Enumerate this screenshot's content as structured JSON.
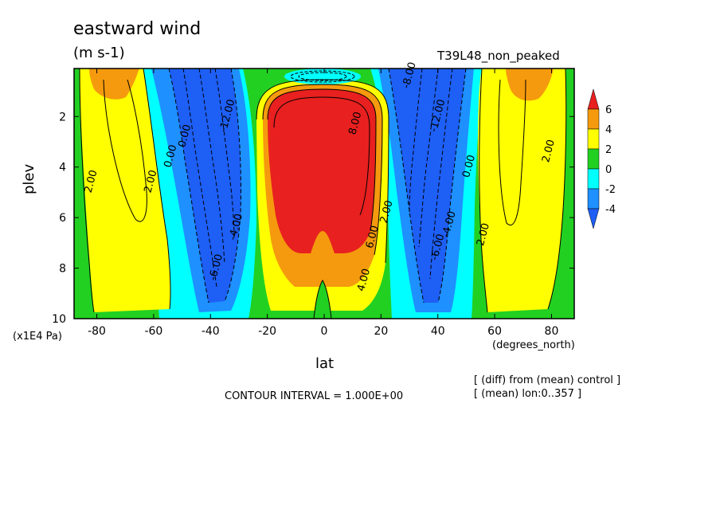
{
  "chart_data": {
    "type": "heatmap",
    "title": "eastward wind",
    "units": "(m s-1)",
    "run_label": "T39L48_non_peaked",
    "xlabel": "lat",
    "x_units": "(degrees_north)",
    "ylabel": "plev",
    "y_scale_label": "(x1E4 Pa)",
    "x_ticks": [
      "-80",
      "-60",
      "-40",
      "-20",
      "0",
      "20",
      "40",
      "60",
      "80"
    ],
    "x_tick_values": [
      -80,
      -60,
      -40,
      -20,
      0,
      20,
      40,
      60,
      80
    ],
    "y_ticks": [
      "2",
      "4",
      "6",
      "8",
      "10"
    ],
    "y_tick_values": [
      2,
      4,
      6,
      8,
      10
    ],
    "xlim": [
      -88,
      88
    ],
    "ylim": [
      0.1,
      10
    ],
    "y_inverted": true,
    "contour_interval": "CONTOUR INTERVAL = 1.000E+00",
    "notes": [
      "[ (diff) from (mean) control ]",
      "[ (mean) lon:0..357 ]"
    ],
    "colorbar": {
      "levels": [
        "6",
        "4",
        "2",
        "0",
        "-2",
        "-4"
      ],
      "colors": [
        "#e8201f",
        "#f59a0e",
        "#ffff00",
        "#22d022",
        "#00ffff",
        "#1e90ff",
        "#1e5ff5"
      ]
    },
    "contour_labels": [
      {
        "text": "8.00",
        "lat": 12,
        "p": 2.3
      },
      {
        "text": "6.00",
        "lat": 18,
        "p": 6.8
      },
      {
        "text": "4.00",
        "lat": 15,
        "p": 8.5
      },
      {
        "text": "2.00",
        "lat": 23,
        "p": 5.8
      },
      {
        "text": "2.00",
        "lat": -81,
        "p": 4.6
      },
      {
        "text": "2.00",
        "lat": -60,
        "p": 4.6
      },
      {
        "text": "2.00",
        "lat": 57,
        "p": 6.7
      },
      {
        "text": "2.00",
        "lat": 80,
        "p": 3.4
      },
      {
        "text": "0.00",
        "lat": -53,
        "p": 3.6
      },
      {
        "text": "0.00",
        "lat": 52,
        "p": 4.0
      },
      {
        "text": "0.00",
        "lat": -48,
        "p": 2.8
      },
      {
        "text": "-4.00",
        "lat": -30,
        "p": 6.4
      },
      {
        "text": "-4.00",
        "lat": 45,
        "p": 6.3
      },
      {
        "text": "-6.00",
        "lat": -37,
        "p": 8.0
      },
      {
        "text": "-6.00",
        "lat": 41,
        "p": 7.2
      },
      {
        "text": "-12.00",
        "lat": -33,
        "p": 2.0
      },
      {
        "text": "-12.00",
        "lat": 41,
        "p": 2.0
      },
      {
        "text": "-8.00",
        "lat": 31,
        "p": 0.4
      }
    ]
  }
}
